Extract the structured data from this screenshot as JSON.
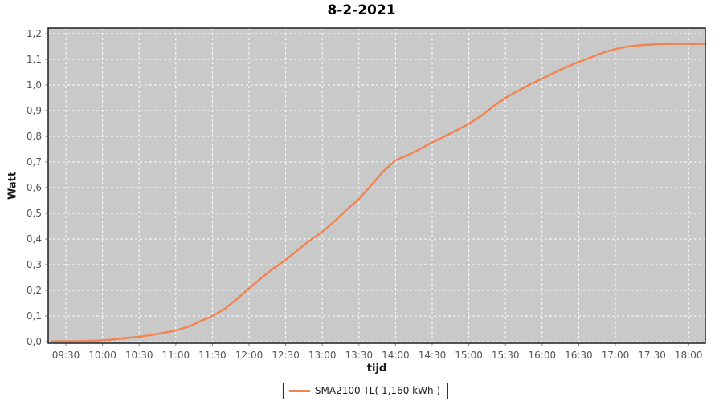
{
  "title": "8-2-2021",
  "axes": {
    "x_label": "tijd",
    "y_label": "Watt"
  },
  "legend": {
    "label": "SMA2100 TL( 1,160 kWh )"
  },
  "chart_data": {
    "type": "line",
    "title": "8-2-2021",
    "xlabel": "tijd",
    "ylabel": "Watt",
    "legend_position": "bottom",
    "grid": true,
    "ylim": [
      0,
      1.2
    ],
    "x_tick_labels": [
      "09:30",
      "10:00",
      "10:30",
      "11:00",
      "11:30",
      "12:00",
      "12:30",
      "13:00",
      "13:30",
      "14:00",
      "14:30",
      "15:00",
      "15:30",
      "16:00",
      "16:30",
      "17:00",
      "17:30",
      "18:00"
    ],
    "x_tick_hours": [
      9.5,
      10,
      10.5,
      11,
      11.5,
      12,
      12.5,
      13,
      13.5,
      14,
      14.5,
      15,
      15.5,
      16,
      16.5,
      17,
      17.5,
      18
    ],
    "y_tick_labels": [
      "0,0",
      "0,1",
      "0,2",
      "0,3",
      "0,4",
      "0,5",
      "0,6",
      "0,7",
      "0,8",
      "0,9",
      "1,0",
      "1,1",
      "1,2"
    ],
    "y_tick_values": [
      0,
      0.1,
      0.2,
      0.3,
      0.4,
      0.5,
      0.6,
      0.7,
      0.8,
      0.9,
      1.0,
      1.1,
      1.2
    ],
    "series": [
      {
        "name": "SMA2100 TL( 1,160 kWh )",
        "total": "1,160 kWh",
        "color": "#F2824E",
        "points": [
          [
            9.3,
            0.001
          ],
          [
            9.5,
            0.002
          ],
          [
            9.67,
            0.002
          ],
          [
            9.83,
            0.003
          ],
          [
            10.0,
            0.005
          ],
          [
            10.17,
            0.009
          ],
          [
            10.33,
            0.014
          ],
          [
            10.5,
            0.019
          ],
          [
            10.67,
            0.026
          ],
          [
            10.83,
            0.034
          ],
          [
            11.0,
            0.043
          ],
          [
            11.17,
            0.058
          ],
          [
            11.33,
            0.078
          ],
          [
            11.5,
            0.1
          ],
          [
            11.67,
            0.128
          ],
          [
            11.83,
            0.165
          ],
          [
            12.0,
            0.208
          ],
          [
            12.17,
            0.248
          ],
          [
            12.33,
            0.285
          ],
          [
            12.5,
            0.318
          ],
          [
            12.67,
            0.358
          ],
          [
            12.83,
            0.394
          ],
          [
            13.0,
            0.428
          ],
          [
            13.17,
            0.47
          ],
          [
            13.33,
            0.513
          ],
          [
            13.5,
            0.556
          ],
          [
            13.67,
            0.61
          ],
          [
            13.83,
            0.663
          ],
          [
            14.0,
            0.707
          ],
          [
            14.08,
            0.717
          ],
          [
            14.17,
            0.727
          ],
          [
            14.33,
            0.75
          ],
          [
            14.5,
            0.777
          ],
          [
            14.67,
            0.8
          ],
          [
            14.83,
            0.823
          ],
          [
            15.0,
            0.848
          ],
          [
            15.17,
            0.88
          ],
          [
            15.33,
            0.916
          ],
          [
            15.5,
            0.95
          ],
          [
            15.67,
            0.977
          ],
          [
            15.83,
            1.002
          ],
          [
            16.0,
            1.025
          ],
          [
            16.17,
            1.048
          ],
          [
            16.33,
            1.07
          ],
          [
            16.5,
            1.09
          ],
          [
            16.67,
            1.108
          ],
          [
            16.83,
            1.126
          ],
          [
            17.0,
            1.14
          ],
          [
            17.17,
            1.15
          ],
          [
            17.33,
            1.155
          ],
          [
            17.5,
            1.158
          ],
          [
            17.67,
            1.16
          ],
          [
            17.83,
            1.16
          ],
          [
            18.0,
            1.161
          ],
          [
            18.1,
            1.16
          ],
          [
            18.23,
            1.161
          ]
        ]
      }
    ],
    "colors": {
      "plot_bg": "#C9C9C9",
      "grid": "#FFFFFF",
      "plot_border": "#1F1F1F",
      "tick_mark": "#888888",
      "tick_label": "#555555",
      "outer_bg": "#FFFFFF"
    }
  }
}
